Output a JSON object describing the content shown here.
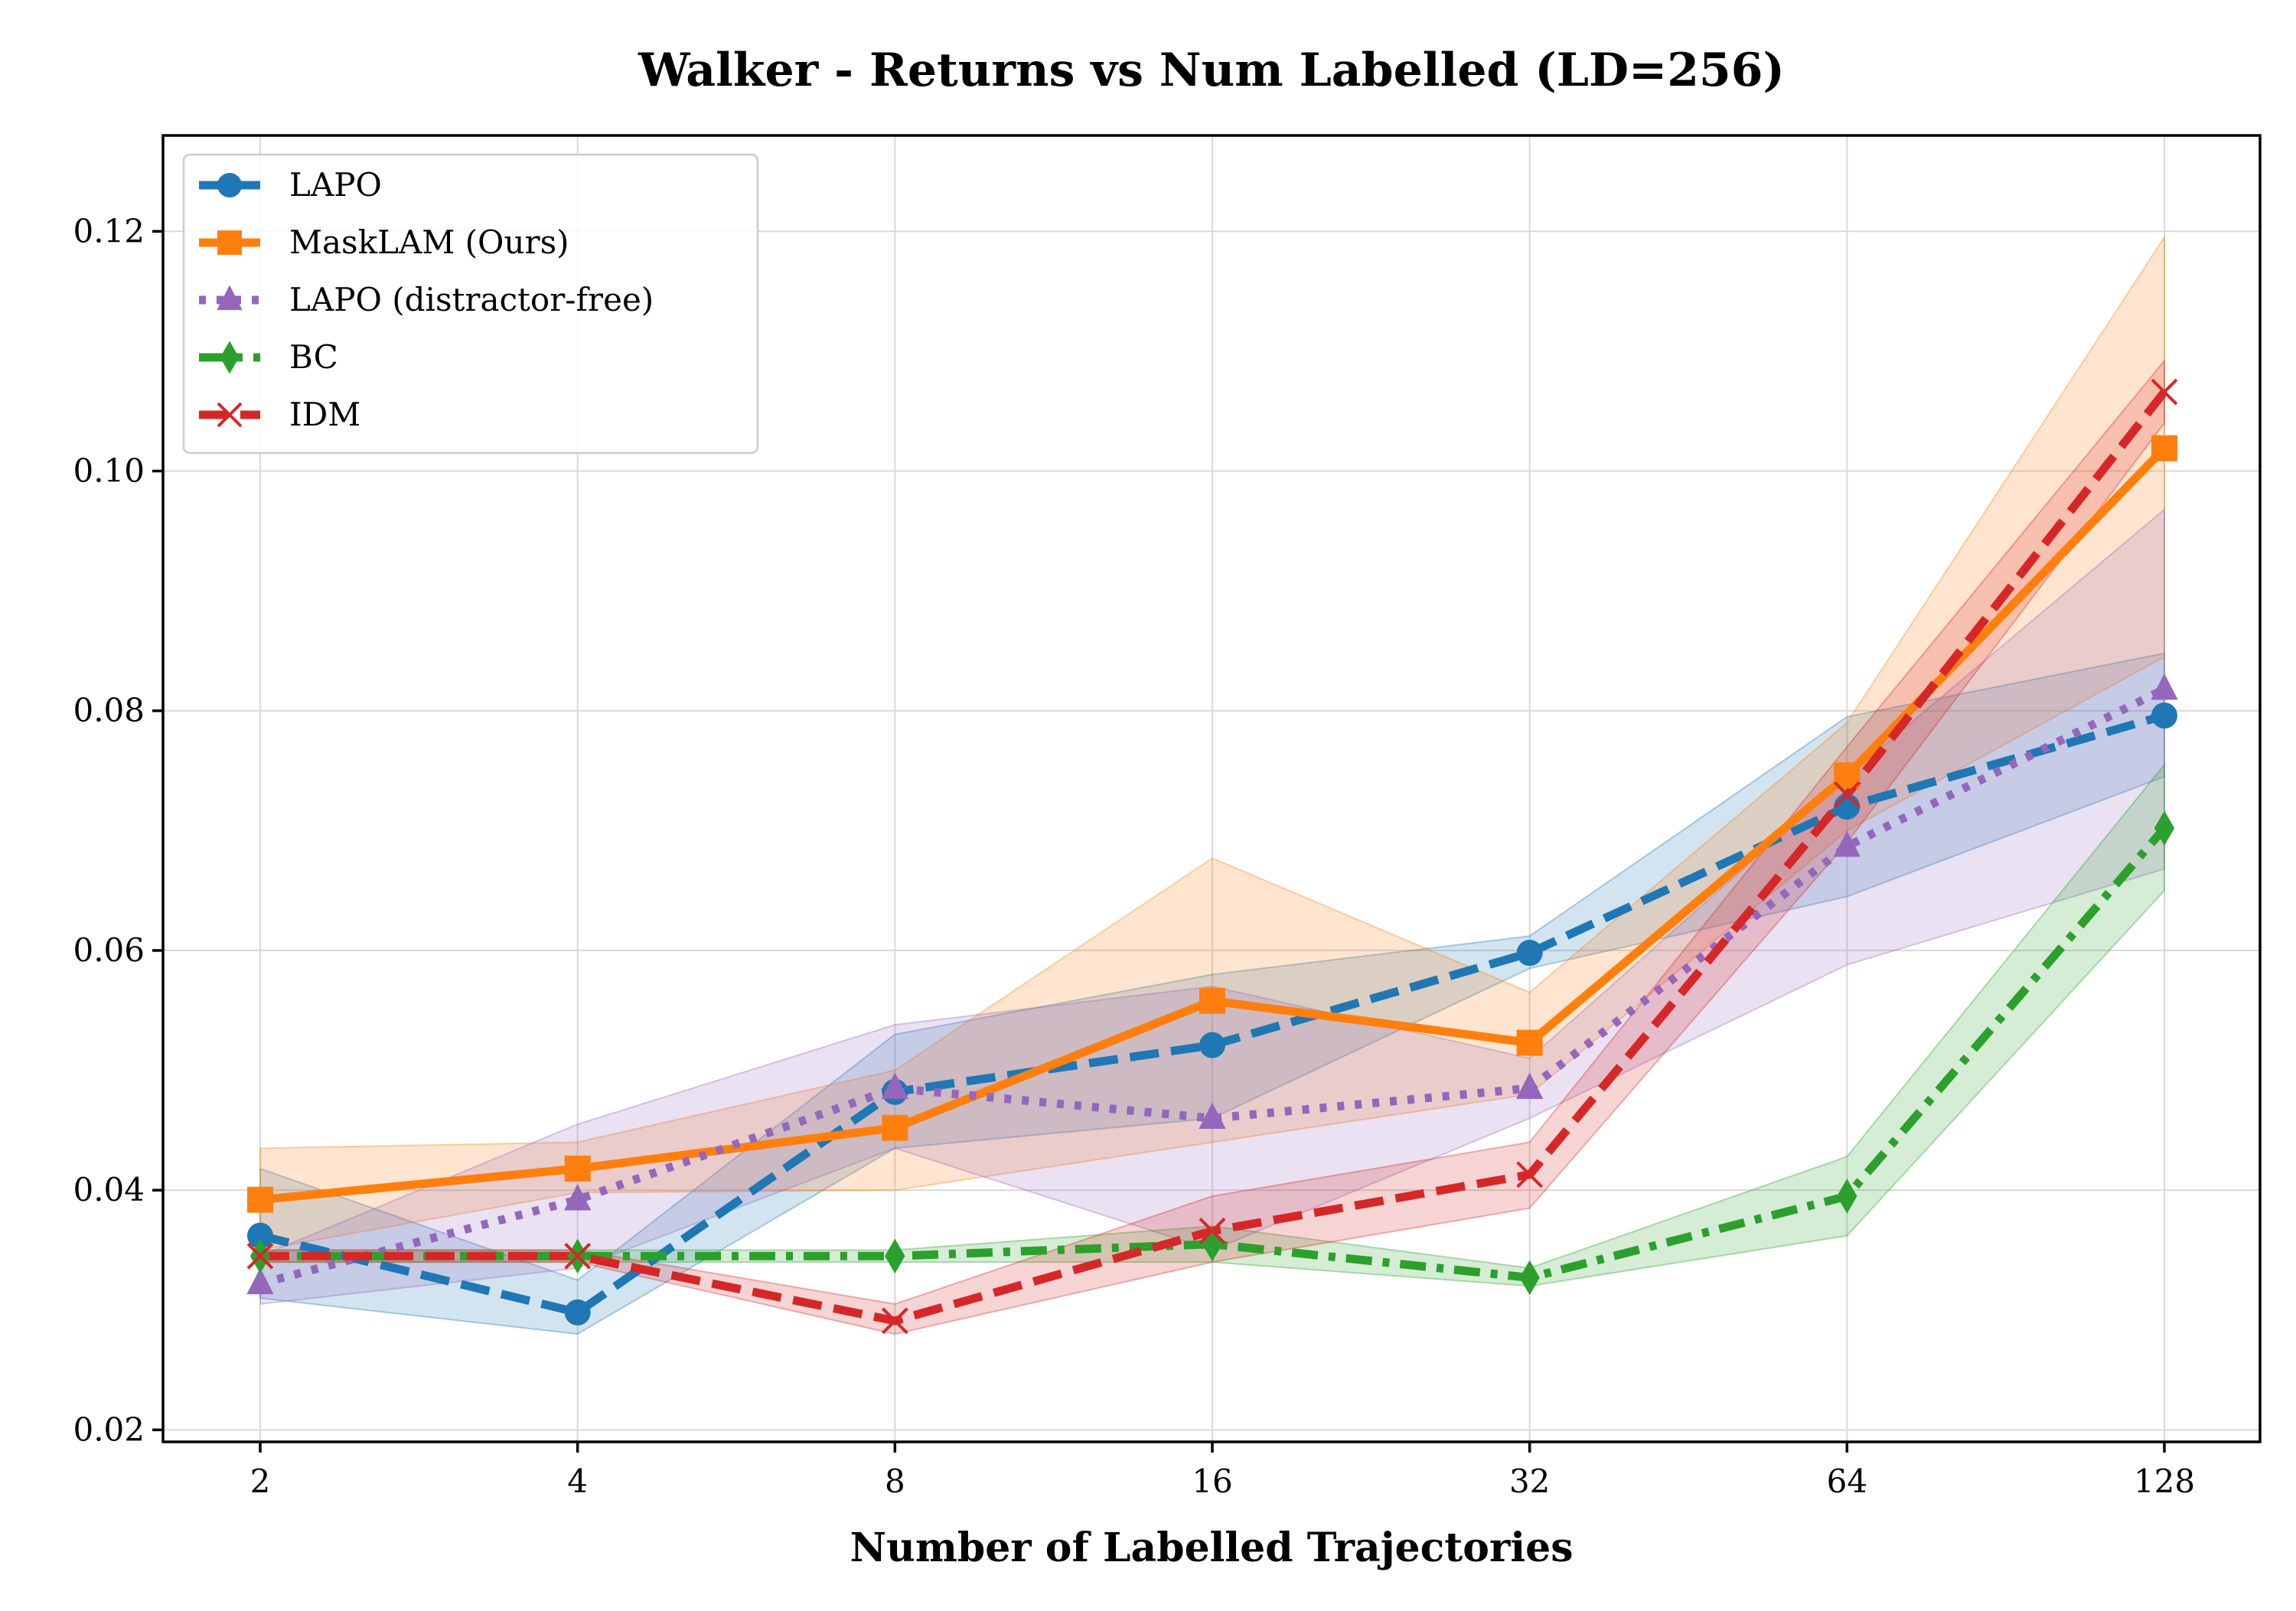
{
  "chart_data": {
    "type": "line",
    "title": "Walker - Returns vs Num Labelled (LD=256)",
    "xlabel": "Number of Labelled Trajectories",
    "ylabel": "",
    "x": [
      2,
      4,
      8,
      16,
      32,
      64,
      128
    ],
    "x_tick_labels": [
      "2",
      "4",
      "8",
      "16",
      "32",
      "64",
      "128"
    ],
    "x_scale": "log2",
    "ylim": [
      0.019,
      0.128
    ],
    "y_ticks": [
      0.02,
      0.04,
      0.06,
      0.08,
      0.1,
      0.12
    ],
    "y_tick_labels": [
      "0.02",
      "0.04",
      "0.06",
      "0.08",
      "0.10",
      "0.12"
    ],
    "grid": true,
    "legend_position": "top-left",
    "series": [
      {
        "name": "LAPO",
        "color": "#1f77b4",
        "linestyle": "dashed",
        "marker": "circle",
        "values": [
          0.0362,
          0.0298,
          0.0482,
          0.0521,
          0.0598,
          0.072,
          0.0796
        ],
        "lower": [
          0.031,
          0.028,
          0.0435,
          0.046,
          0.0585,
          0.0645,
          0.0745
        ],
        "upper": [
          0.0418,
          0.0325,
          0.053,
          0.058,
          0.0612,
          0.0795,
          0.0848
        ]
      },
      {
        "name": "MaskLAM (Ours)",
        "color": "#ff7f0e",
        "linestyle": "solid",
        "marker": "square",
        "values": [
          0.0392,
          0.0418,
          0.0452,
          0.0558,
          0.0523,
          0.0746,
          0.1019
        ],
        "lower": [
          0.035,
          0.0398,
          0.04,
          0.044,
          0.048,
          0.07,
          0.0845
        ],
        "upper": [
          0.0435,
          0.044,
          0.05,
          0.0677,
          0.0565,
          0.079,
          0.1195
        ]
      },
      {
        "name": "LAPO (distractor-free)",
        "color": "#9467bd",
        "linestyle": "dotted",
        "marker": "triangle",
        "values": [
          0.0322,
          0.0392,
          0.0485,
          0.046,
          0.0485,
          0.0687,
          0.0818
        ],
        "lower": [
          0.0305,
          0.0335,
          0.0435,
          0.035,
          0.046,
          0.0588,
          0.0668
        ],
        "upper": [
          0.0345,
          0.0455,
          0.0538,
          0.057,
          0.051,
          0.0745,
          0.0968
        ]
      },
      {
        "name": "BC",
        "color": "#2ca02c",
        "linestyle": "dashdot",
        "marker": "diamond",
        "values": [
          0.0345,
          0.0345,
          0.0345,
          0.0355,
          0.0327,
          0.0395,
          0.0702
        ],
        "lower": [
          0.034,
          0.034,
          0.034,
          0.034,
          0.032,
          0.0362,
          0.065
        ],
        "upper": [
          0.035,
          0.035,
          0.035,
          0.037,
          0.0335,
          0.0428,
          0.0755
        ]
      },
      {
        "name": "IDM",
        "color": "#d62728",
        "linestyle": "dashed",
        "marker": "x",
        "values": [
          0.0345,
          0.0345,
          0.0291,
          0.0366,
          0.0413,
          0.073,
          0.1066
        ],
        "lower": [
          0.034,
          0.034,
          0.028,
          0.034,
          0.0385,
          0.069,
          0.104
        ],
        "upper": [
          0.035,
          0.035,
          0.0305,
          0.0395,
          0.044,
          0.077,
          0.1092
        ]
      }
    ]
  }
}
